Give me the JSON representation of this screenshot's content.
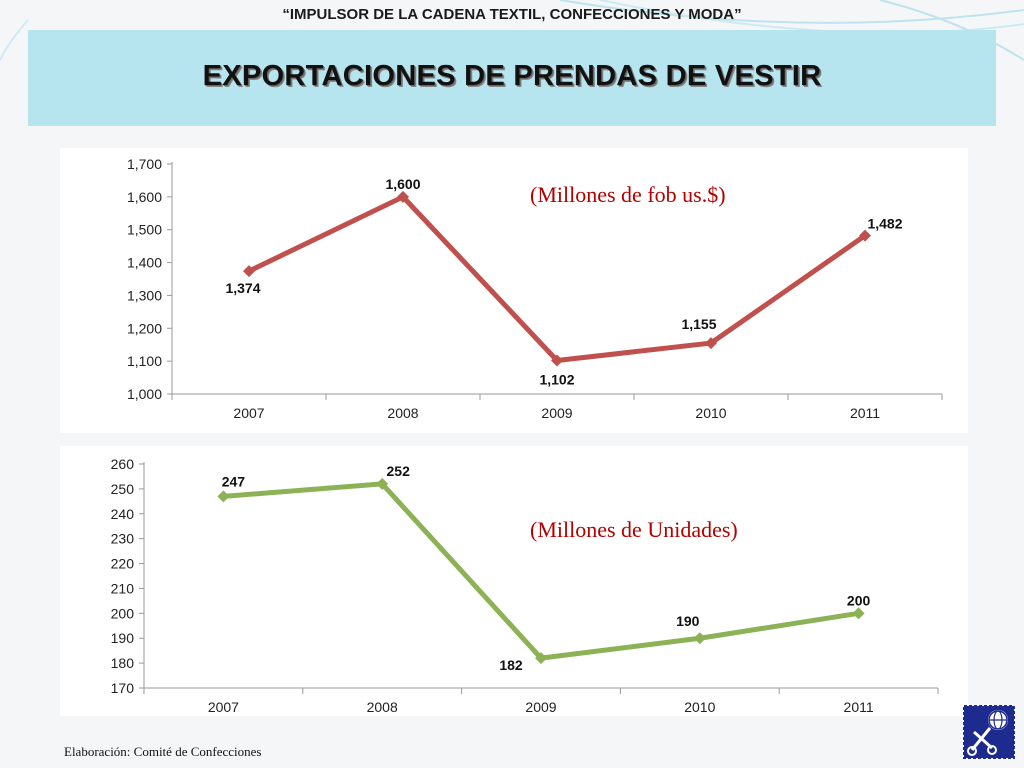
{
  "header": {
    "banner": "“IMPULSOR DE LA CADENA TEXTIL, CONFECCIONES Y MODA”",
    "title": "EXPORTACIONES DE PRENDAS DE VESTIR"
  },
  "chart_data": [
    {
      "type": "line",
      "annotation": "(Millones de fob us.$)",
      "categories": [
        "2007",
        "2008",
        "2009",
        "2010",
        "2011"
      ],
      "series": [
        {
          "values": [
            1374,
            1600,
            1102,
            1155,
            1482
          ],
          "color": "#c0504d"
        }
      ],
      "data_labels": [
        "1,374",
        "1,600",
        "1,102",
        "1,155",
        "1,482"
      ],
      "ylim": [
        1000,
        1700
      ],
      "yticks": [
        1000,
        1100,
        1200,
        1300,
        1400,
        1500,
        1600,
        1700
      ],
      "ytick_labels": [
        "1,000",
        "1,100",
        "1,200",
        "1,300",
        "1,400",
        "1,500",
        "1,600",
        "1,700"
      ],
      "grid": false
    },
    {
      "type": "line",
      "annotation": "(Millones de Unidades)",
      "categories": [
        "2007",
        "2008",
        "2009",
        "2010",
        "2011"
      ],
      "series": [
        {
          "values": [
            247,
            252,
            182,
            190,
            200
          ],
          "color": "#8db255"
        }
      ],
      "data_labels": [
        "247",
        "252",
        "182",
        "190",
        "200"
      ],
      "ylim": [
        170,
        260
      ],
      "yticks": [
        170,
        180,
        190,
        200,
        210,
        220,
        230,
        240,
        250,
        260
      ],
      "ytick_labels": [
        "170",
        "180",
        "190",
        "200",
        "210",
        "220",
        "230",
        "240",
        "250",
        "260"
      ],
      "grid": false
    }
  ],
  "footer": {
    "credit": "Elaboración: Comité de Confecciones"
  },
  "logo": {
    "icon": "globe-scissors-stamp-icon"
  }
}
